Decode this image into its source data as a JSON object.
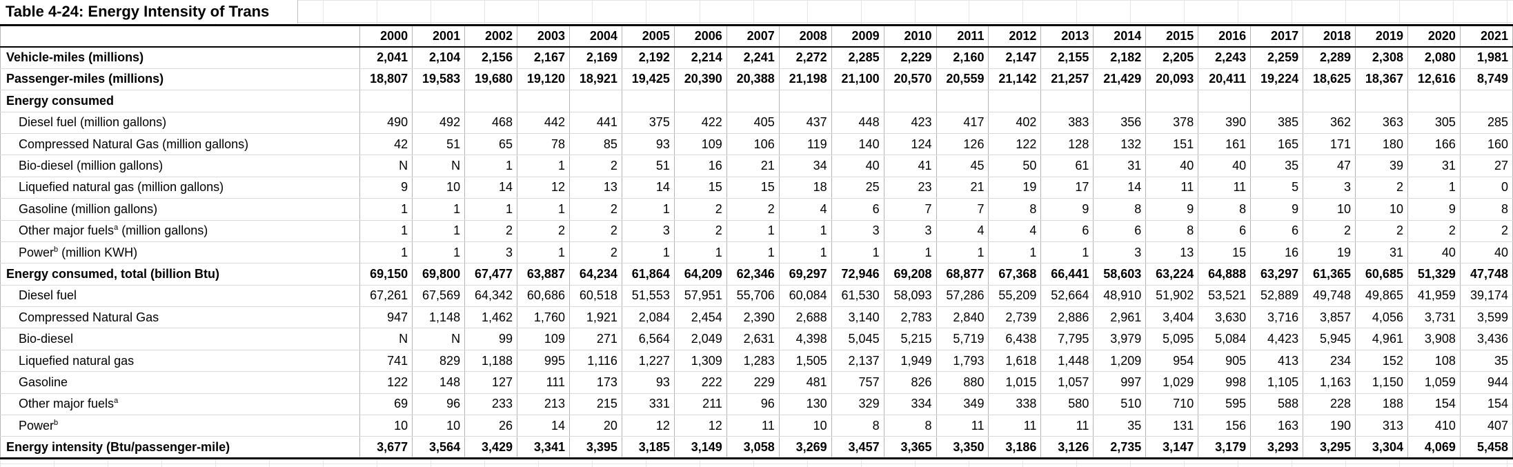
{
  "title": "Table 4-24:  Energy Intensity of Trans",
  "years": [
    "2000",
    "2001",
    "2002",
    "2003",
    "2004",
    "2005",
    "2006",
    "2007",
    "2008",
    "2009",
    "2010",
    "2011",
    "2012",
    "2013",
    "2014",
    "2015",
    "2016",
    "2017",
    "2018",
    "2019",
    "2020",
    "2021"
  ],
  "rows": [
    {
      "label": "Vehicle-miles (millions)",
      "bold": true,
      "indent": false,
      "values": [
        "2,041",
        "2,104",
        "2,156",
        "2,167",
        "2,169",
        "2,192",
        "2,214",
        "2,241",
        "2,272",
        "2,285",
        "2,229",
        "2,160",
        "2,147",
        "2,155",
        "2,182",
        "2,205",
        "2,243",
        "2,259",
        "2,289",
        "2,308",
        "2,080",
        "1,981"
      ]
    },
    {
      "label": "Passenger-miles (millions)",
      "bold": true,
      "indent": false,
      "values": [
        "18,807",
        "19,583",
        "19,680",
        "19,120",
        "18,921",
        "19,425",
        "20,390",
        "20,388",
        "21,198",
        "21,100",
        "20,570",
        "20,559",
        "21,142",
        "21,257",
        "21,429",
        "20,093",
        "20,411",
        "19,224",
        "18,625",
        "18,367",
        "12,616",
        "8,749"
      ]
    },
    {
      "label": "Energy consumed",
      "bold": true,
      "indent": false,
      "values": []
    },
    {
      "label": "Diesel fuel (million gallons)",
      "bold": false,
      "indent": true,
      "values": [
        "490",
        "492",
        "468",
        "442",
        "441",
        "375",
        "422",
        "405",
        "437",
        "448",
        "423",
        "417",
        "402",
        "383",
        "356",
        "378",
        "390",
        "385",
        "362",
        "363",
        "305",
        "285"
      ]
    },
    {
      "label": "Compressed Natural Gas (million gallons)",
      "bold": false,
      "indent": true,
      "values": [
        "42",
        "51",
        "65",
        "78",
        "85",
        "93",
        "109",
        "106",
        "119",
        "140",
        "124",
        "126",
        "122",
        "128",
        "132",
        "151",
        "161",
        "165",
        "171",
        "180",
        "166",
        "160"
      ]
    },
    {
      "label": "Bio-diesel (million gallons)",
      "bold": false,
      "indent": true,
      "values": [
        "N",
        "N",
        "1",
        "1",
        "2",
        "51",
        "16",
        "21",
        "34",
        "40",
        "41",
        "45",
        "50",
        "61",
        "31",
        "40",
        "40",
        "35",
        "47",
        "39",
        "31",
        "27"
      ]
    },
    {
      "label": "Liquefied natural gas (million gallons)",
      "bold": false,
      "indent": true,
      "values": [
        "9",
        "10",
        "14",
        "12",
        "13",
        "14",
        "15",
        "15",
        "18",
        "25",
        "23",
        "21",
        "19",
        "17",
        "14",
        "11",
        "11",
        "5",
        "3",
        "2",
        "1",
        "0"
      ]
    },
    {
      "label": "Gasoline (million gallons)",
      "bold": false,
      "indent": true,
      "values": [
        "1",
        "1",
        "1",
        "1",
        "2",
        "1",
        "2",
        "2",
        "4",
        "6",
        "7",
        "7",
        "8",
        "9",
        "8",
        "9",
        "8",
        "9",
        "10",
        "10",
        "9",
        "8"
      ]
    },
    {
      "label": "Other major fuels",
      "sup": "a",
      "suffix": " (million gallons)",
      "bold": false,
      "indent": true,
      "values": [
        "1",
        "1",
        "2",
        "2",
        "2",
        "3",
        "2",
        "1",
        "1",
        "3",
        "3",
        "4",
        "4",
        "6",
        "6",
        "8",
        "6",
        "6",
        "2",
        "2",
        "2",
        "2"
      ]
    },
    {
      "label": "Power",
      "sup": "b",
      "suffix": " (million KWH)",
      "bold": false,
      "indent": true,
      "values": [
        "1",
        "1",
        "3",
        "1",
        "2",
        "1",
        "1",
        "1",
        "1",
        "1",
        "1",
        "1",
        "1",
        "1",
        "3",
        "13",
        "15",
        "16",
        "19",
        "31",
        "40",
        "40"
      ]
    },
    {
      "label": "Energy consumed, total (billion Btu)",
      "bold": true,
      "indent": false,
      "values": [
        "69,150",
        "69,800",
        "67,477",
        "63,887",
        "64,234",
        "61,864",
        "64,209",
        "62,346",
        "69,297",
        "72,946",
        "69,208",
        "68,877",
        "67,368",
        "66,441",
        "58,603",
        "63,224",
        "64,888",
        "63,297",
        "61,365",
        "60,685",
        "51,329",
        "47,748"
      ]
    },
    {
      "label": "Diesel fuel",
      "bold": false,
      "indent": true,
      "values": [
        "67,261",
        "67,569",
        "64,342",
        "60,686",
        "60,518",
        "51,553",
        "57,951",
        "55,706",
        "60,084",
        "61,530",
        "58,093",
        "57,286",
        "55,209",
        "52,664",
        "48,910",
        "51,902",
        "53,521",
        "52,889",
        "49,748",
        "49,865",
        "41,959",
        "39,174"
      ]
    },
    {
      "label": "Compressed Natural Gas",
      "bold": false,
      "indent": true,
      "values": [
        "947",
        "1,148",
        "1,462",
        "1,760",
        "1,921",
        "2,084",
        "2,454",
        "2,390",
        "2,688",
        "3,140",
        "2,783",
        "2,840",
        "2,739",
        "2,886",
        "2,961",
        "3,404",
        "3,630",
        "3,716",
        "3,857",
        "4,056",
        "3,731",
        "3,599"
      ]
    },
    {
      "label": "Bio-diesel",
      "bold": false,
      "indent": true,
      "values": [
        "N",
        "N",
        "99",
        "109",
        "271",
        "6,564",
        "2,049",
        "2,631",
        "4,398",
        "5,045",
        "5,215",
        "5,719",
        "6,438",
        "7,795",
        "3,979",
        "5,095",
        "5,084",
        "4,423",
        "5,945",
        "4,961",
        "3,908",
        "3,436"
      ]
    },
    {
      "label": "Liquefied natural gas",
      "bold": false,
      "indent": true,
      "values": [
        "741",
        "829",
        "1,188",
        "995",
        "1,116",
        "1,227",
        "1,309",
        "1,283",
        "1,505",
        "2,137",
        "1,949",
        "1,793",
        "1,618",
        "1,448",
        "1,209",
        "954",
        "905",
        "413",
        "234",
        "152",
        "108",
        "35"
      ]
    },
    {
      "label": "Gasoline",
      "bold": false,
      "indent": true,
      "values": [
        "122",
        "148",
        "127",
        "111",
        "173",
        "93",
        "222",
        "229",
        "481",
        "757",
        "826",
        "880",
        "1,015",
        "1,057",
        "997",
        "1,029",
        "998",
        "1,105",
        "1,163",
        "1,150",
        "1,059",
        "944"
      ]
    },
    {
      "label": "Other major fuels",
      "sup": "a",
      "suffix": "",
      "bold": false,
      "indent": true,
      "values": [
        "69",
        "96",
        "233",
        "213",
        "215",
        "331",
        "211",
        "96",
        "130",
        "329",
        "334",
        "349",
        "338",
        "580",
        "510",
        "710",
        "595",
        "588",
        "228",
        "188",
        "154",
        "154"
      ]
    },
    {
      "label": "Power",
      "sup": "b",
      "suffix": "",
      "bold": false,
      "indent": true,
      "values": [
        "10",
        "10",
        "26",
        "14",
        "20",
        "12",
        "12",
        "11",
        "10",
        "8",
        "8",
        "11",
        "11",
        "11",
        "35",
        "131",
        "156",
        "163",
        "190",
        "313",
        "410",
        "407"
      ]
    },
    {
      "label": "Energy intensity (Btu/passenger-mile)",
      "bold": true,
      "indent": false,
      "values": [
        "3,677",
        "3,564",
        "3,429",
        "3,341",
        "3,395",
        "3,185",
        "3,149",
        "3,058",
        "3,269",
        "3,457",
        "3,365",
        "3,350",
        "3,186",
        "3,126",
        "2,735",
        "3,147",
        "3,179",
        "3,293",
        "3,295",
        "3,304",
        "4,069",
        "5,458"
      ]
    }
  ]
}
